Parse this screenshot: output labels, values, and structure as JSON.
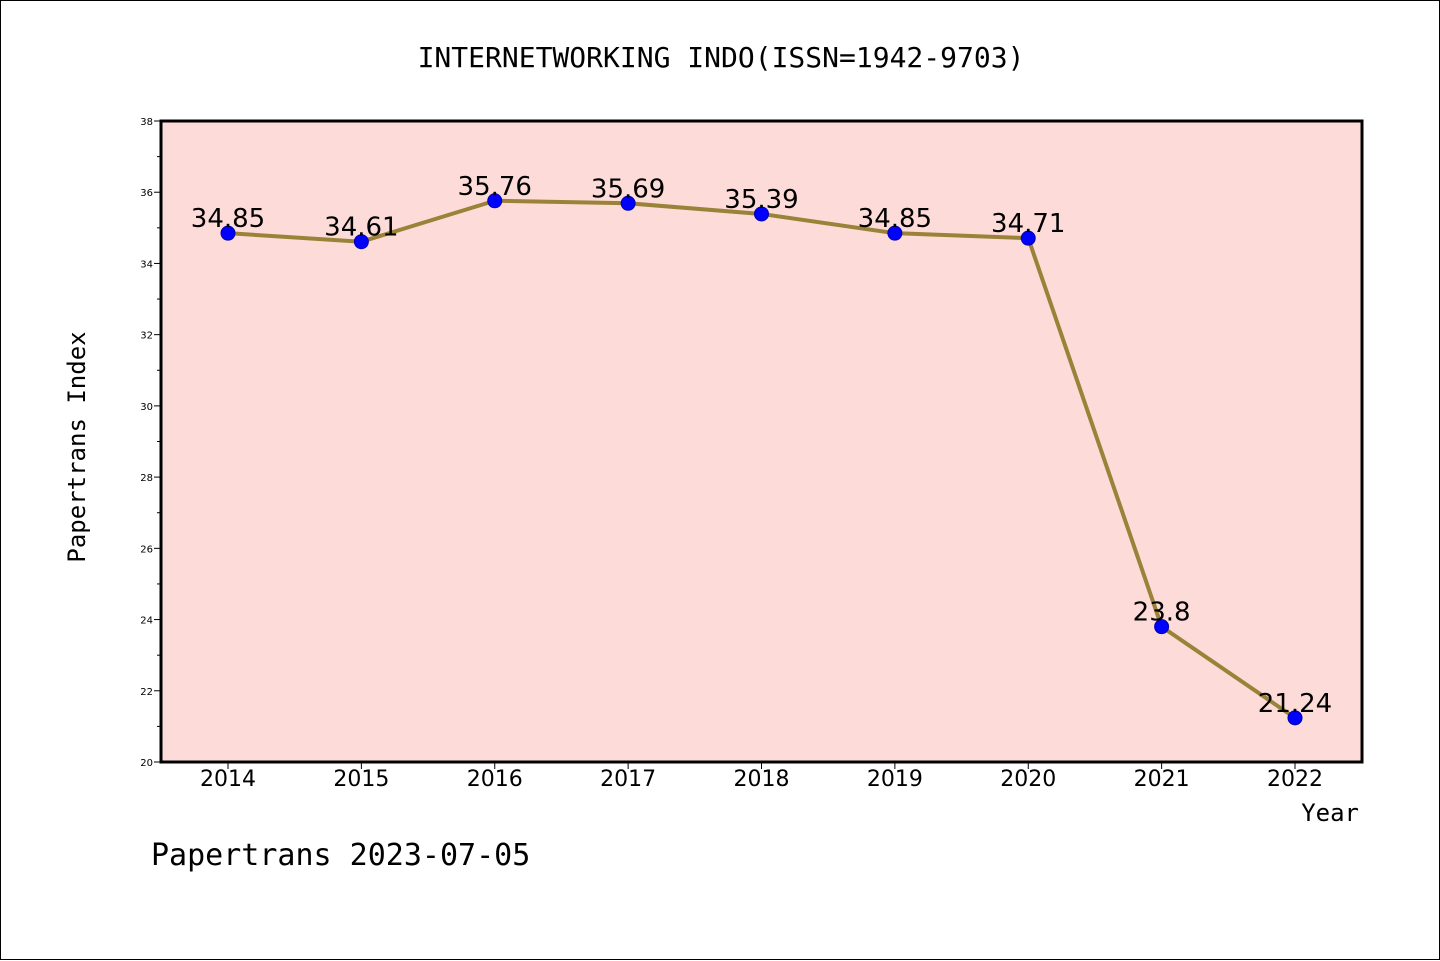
{
  "chart_data": {
    "type": "line",
    "title": "INTERNETWORKING INDO(ISSN=1942-9703)",
    "xlabel": "Year",
    "ylabel": "Papertrans Index",
    "footer": "Papertrans 2023-07-05",
    "x": [
      "2014",
      "2015",
      "2016",
      "2017",
      "2018",
      "2019",
      "2020",
      "2021",
      "2022"
    ],
    "series": [
      {
        "values": [
          34.85,
          34.61,
          35.76,
          35.69,
          35.39,
          34.85,
          34.71,
          23.8,
          21.24
        ],
        "labels": [
          "34.85",
          "34.61",
          "35.76",
          "35.69",
          "35.39",
          "34.85",
          "34.71",
          "23.8",
          "21.24"
        ]
      }
    ],
    "ylim": [
      20,
      38
    ],
    "yticks": [
      "20",
      "22",
      "24",
      "26",
      "28",
      "30",
      "32",
      "34",
      "36",
      "38"
    ],
    "grid": false,
    "legend": "none",
    "colors": {
      "plot_background": "#fddbd8",
      "line": "#9a8238",
      "marker": "#0000ff",
      "axis": "#000000"
    }
  }
}
